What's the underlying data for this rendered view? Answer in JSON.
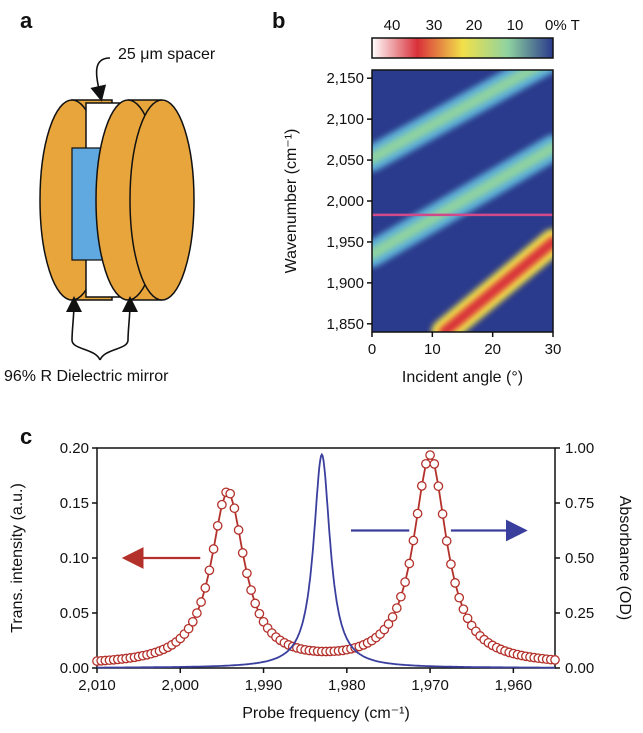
{
  "panels": {
    "a": "a",
    "b": "b",
    "c": "c"
  },
  "panel_a": {
    "spacer_label": "25 μm spacer",
    "mirror_label": "96% R Dielectric mirror",
    "colors": {
      "mirror": "#e8a53c",
      "cavity": "#5fa8e0"
    }
  },
  "chart_data": [
    {
      "type": "heatmap",
      "xlabel": "Incident angle (°)",
      "ylabel": "Wavenumber (cm⁻¹)",
      "xlim": [
        0,
        30
      ],
      "ylim": [
        1840,
        2160
      ],
      "xticks": [
        0,
        10,
        20,
        30
      ],
      "yticks": [
        1850,
        1900,
        1950,
        2000,
        2050,
        2100,
        2150
      ],
      "ytick_labels": [
        "1,850",
        "1,900",
        "1,950",
        "2,000",
        "2,050",
        "2,100",
        "2,150"
      ],
      "colorbar": {
        "ticks": [
          40,
          30,
          20,
          10,
          0
        ],
        "tick_labels": [
          "40",
          "30",
          "20",
          "10",
          "0% T"
        ],
        "colors": [
          "#ffffff",
          "#d9303a",
          "#f2e04a",
          "#8fd3a0",
          "#2a3a8c"
        ]
      },
      "horizontal_line": {
        "y": 1983,
        "color": "#d04a8a"
      },
      "bands": [
        {
          "x": [
            0,
            30
          ],
          "y": [
            2052,
            2175
          ],
          "peak": 12
        },
        {
          "x": [
            0,
            30
          ],
          "y": [
            1935,
            2065
          ],
          "peak": 18
        },
        {
          "x": [
            12,
            30
          ],
          "y": [
            1840,
            1950
          ],
          "peak": 40
        }
      ],
      "grid": false
    },
    {
      "type": "line",
      "xlabel": "Probe frequency (cm⁻¹)",
      "ylabel": "Trans. intensity (a.u.)",
      "ylabel_right": "Absorbance (OD)",
      "xlim": [
        2010,
        1955
      ],
      "xticks": [
        2010,
        2000,
        1990,
        1980,
        1970,
        1960
      ],
      "xtick_labels": [
        "2,010",
        "2,000",
        "1,990",
        "1,980",
        "1,970",
        "1,960"
      ],
      "ylim": [
        0,
        0.2
      ],
      "yticks": [
        0,
        0.05,
        0.1,
        0.15,
        0.2
      ],
      "ytick_labels": [
        "0.00",
        "0.05",
        "0.10",
        "0.15",
        "0.20"
      ],
      "ylim_right": [
        0,
        1
      ],
      "yticks_right_labels": [
        "0.00",
        "0.25",
        "0.50",
        "0.75",
        "1.00"
      ],
      "series": [
        {
          "axis": "left",
          "color": "#b4302a",
          "marker": "circle",
          "step": 0.5,
          "peaks": [
            {
              "x0": 1994.3,
              "gamma": 2.4,
              "amp": 0.157
            },
            {
              "x0": 1970.0,
              "gamma": 2.4,
              "amp": 0.19
            }
          ]
        },
        {
          "axis": "right",
          "color": "#3a3f9e",
          "marker": "none",
          "step": 0.1,
          "peaks": [
            {
              "x0": 1983.0,
              "gamma": 1.2,
              "amp": 0.97
            }
          ]
        }
      ]
    }
  ]
}
